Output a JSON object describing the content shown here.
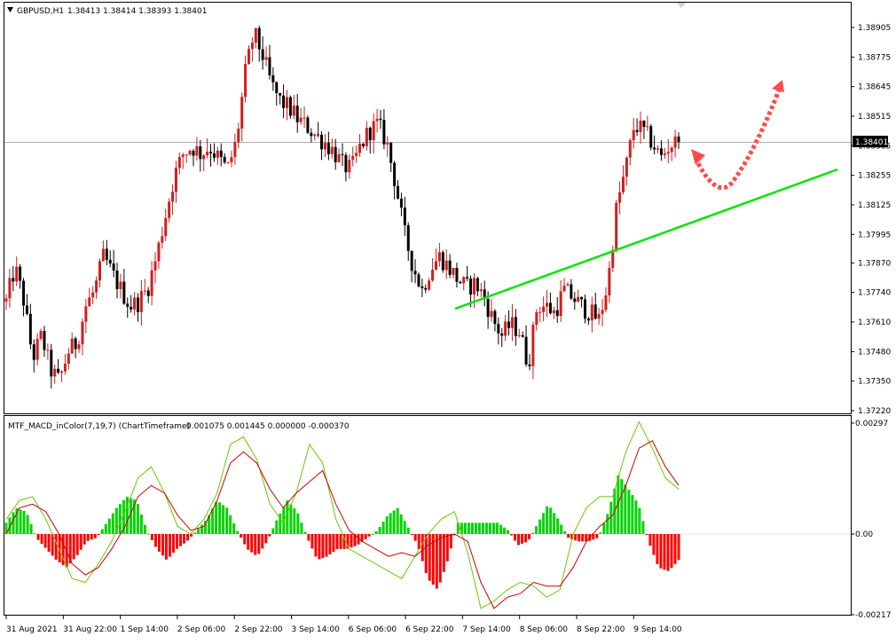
{
  "main_header": {
    "symbol": "GBPUSD,H1",
    "quote": "1.38413 1.38414 1.38393 1.38401"
  },
  "indicator_header": {
    "name": "MTF_MACD_inColor(7,19,7) (ChartTimeframe)",
    "values": "0.001075 0.001445 0.000000 -0.000370"
  },
  "price_axis": {
    "ticks": [
      "1.38905",
      "1.38775",
      "1.38645",
      "1.38515",
      "1.38385",
      "1.38255",
      "1.38125",
      "1.37995",
      "1.37870",
      "1.37740",
      "1.37610",
      "1.37480",
      "1.37350",
      "1.37220"
    ],
    "current_price": "1.38401"
  },
  "indicator_axis": {
    "ticks": [
      "0.00297",
      "0.00",
      "-0.00217"
    ]
  },
  "time_axis": {
    "labels": [
      "31 Aug 2021",
      "31 Aug 22:00",
      "1 Sep 14:00",
      "2 Sep 06:00",
      "2 Sep 22:00",
      "3 Sep 14:00",
      "6 Sep 06:00",
      "6 Sep 22:00",
      "7 Sep 14:00",
      "8 Sep 06:00",
      "8 Sep 22:00",
      "9 Sep 14:00"
    ]
  },
  "colors": {
    "bull": "#d21e1e",
    "bear": "#000000",
    "trendline": "#00e600",
    "hist_pos": "#00d400",
    "hist_neg": "#ff0000",
    "macd_line": "#66cc00",
    "signal_line": "#cc0000",
    "arrow": "#ff4a4a"
  },
  "chart_data": [
    {
      "type": "candlestick",
      "title": "GBPUSD,H1",
      "ylim": [
        1.3722,
        1.3897
      ],
      "x": [
        "31 Aug 2021",
        "31 Aug 22:00",
        "1 Sep 14:00",
        "2 Sep 06:00",
        "2 Sep 22:00",
        "3 Sep 14:00",
        "6 Sep 06:00",
        "6 Sep 22:00",
        "7 Sep 14:00",
        "8 Sep 06:00",
        "8 Sep 22:00",
        "9 Sep 14:00"
      ],
      "close_path": [
        1.377,
        1.3785,
        1.377,
        1.3745,
        1.3755,
        1.374,
        1.3735,
        1.3748,
        1.3752,
        1.3768,
        1.3775,
        1.379,
        1.3782,
        1.3775,
        1.3768,
        1.377,
        1.3776,
        1.379,
        1.3808,
        1.3825,
        1.3835,
        1.3838,
        1.3835,
        1.3838,
        1.3833,
        1.3828,
        1.384,
        1.387,
        1.3888,
        1.3878,
        1.3865,
        1.3858,
        1.3855,
        1.385,
        1.3847,
        1.3843,
        1.384,
        1.3836,
        1.383,
        1.3828,
        1.3838,
        1.3845,
        1.3848,
        1.384,
        1.3822,
        1.38,
        1.3785,
        1.3775,
        1.3785,
        1.379,
        1.3785,
        1.378,
        1.3776,
        1.3778,
        1.3772,
        1.3762,
        1.3755,
        1.376,
        1.3757,
        1.3742,
        1.3768,
        1.3768,
        1.3765,
        1.3775,
        1.3772,
        1.3768,
        1.3765,
        1.3762,
        1.3778,
        1.3812,
        1.3828,
        1.3848,
        1.3845,
        1.384,
        1.3833,
        1.3839,
        1.384
      ]
    },
    {
      "type": "bar",
      "title": "MTF_MACD_inColor(7,19,7) (ChartTimeframe)",
      "ylim": [
        -0.00217,
        0.00297
      ],
      "histogram": [
        0.0003,
        0.0007,
        0.0006,
        -0.0001,
        -0.0004,
        -0.0007,
        -0.0009,
        -0.0006,
        -0.0002,
        -0.0001,
        0.0003,
        0.0007,
        0.001,
        0.0009,
        0.0001,
        -0.0004,
        -0.0007,
        -0.0004,
        -0.0002,
        0.0001,
        0.0004,
        0.0009,
        0.0007,
        0.0001,
        -0.0004,
        -0.0006,
        -0.0002,
        0.0004,
        0.0009,
        0.0006,
        -0.0001,
        -0.0007,
        -0.0006,
        -0.0004,
        -0.0004,
        -0.0003,
        -0.0001,
        0.0001,
        0.0005,
        0.0007,
        0.0002,
        -0.0003,
        -0.0012,
        -0.0015,
        -0.0007,
        0.0003,
        0.0003,
        0.0003,
        0.0003,
        0.0003,
        0.0001,
        -0.0003,
        -0.0002,
        0.0003,
        0.0008,
        0.0004,
        -0.0001,
        -0.0002,
        -0.0002,
        -0.0001,
        0.0006,
        0.0016,
        0.0012,
        0.0008,
        -0.0002,
        -0.0009,
        -0.001,
        -0.0007
      ],
      "series": [
        {
          "values": [
            0.0004,
            0.0009,
            0.001,
            0.0004,
            -0.0004,
            -0.0012,
            -0.0013,
            -0.0008,
            -0.0002,
            0.0006,
            0.0015,
            0.0018,
            0.0011,
            0.0002,
            0.0,
            0.0004,
            0.0011,
            0.0024,
            0.0026,
            0.002,
            0.0008,
            0.0003,
            0.0011,
            0.0024,
            0.0019,
            0.0004,
            -0.0004,
            -0.0006,
            -0.0008,
            -0.001,
            -0.0012,
            -0.0006,
            0.0,
            0.0004,
            0.0006,
            -0.0005,
            -0.002,
            -0.0018,
            -0.0015,
            -0.0013,
            -0.0014,
            -0.0017,
            -0.0015,
            0.0,
            0.0007,
            0.001,
            0.001,
            0.0022,
            0.003,
            0.0023,
            0.0015,
            0.0012
          ]
        },
        {
          "values": [
            0.0,
            0.0007,
            0.0008,
            0.0006,
            0.0,
            -0.0008,
            -0.0011,
            -0.0009,
            -0.0004,
            0.0002,
            0.001,
            0.0013,
            0.0011,
            0.0005,
            0.0001,
            0.0002,
            0.0009,
            0.0019,
            0.0022,
            0.0019,
            0.0012,
            0.0007,
            0.0011,
            0.0014,
            0.0017,
            0.0008,
            0.0001,
            -0.0002,
            -0.0004,
            -0.0006,
            -0.0005,
            -0.0006,
            -0.0003,
            -0.0001,
            0.0,
            -0.0002,
            -0.0013,
            -0.002,
            -0.0017,
            -0.0016,
            -0.0013,
            -0.0014,
            -0.0014,
            -0.0009,
            -0.0002,
            0.0002,
            0.0005,
            0.0013,
            0.0023,
            0.0025,
            0.0018,
            0.0013
          ]
        }
      ]
    }
  ]
}
